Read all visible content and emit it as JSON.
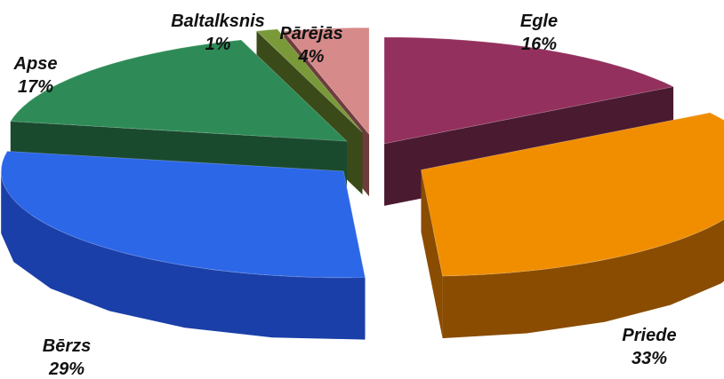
{
  "chart_data": {
    "type": "pie",
    "title": "",
    "style": "3d-exploded",
    "slices": [
      {
        "label": "Egle",
        "value": 16,
        "value_text": "16%",
        "color": "#93305E",
        "side_color": "#4A1A30"
      },
      {
        "label": "Priede",
        "value": 33,
        "value_text": "33%",
        "color": "#F08E00",
        "side_color": "#8A4C00"
      },
      {
        "label": "Bērzs",
        "value": 29,
        "value_text": "29%",
        "color": "#2C67E8",
        "side_color": "#1B3FA8"
      },
      {
        "label": "Apse",
        "value": 17,
        "value_text": "17%",
        "color": "#2E8B57",
        "side_color": "#1A4A2E"
      },
      {
        "label": "Baltalksnis",
        "value": 1,
        "value_text": "1%",
        "color": "#7A9A3A",
        "side_color": "#3A4A18"
      },
      {
        "label": "Pārējās",
        "value": 4,
        "value_text": "4%",
        "color": "#D68A8A",
        "side_color": "#6E3C3C"
      }
    ]
  }
}
